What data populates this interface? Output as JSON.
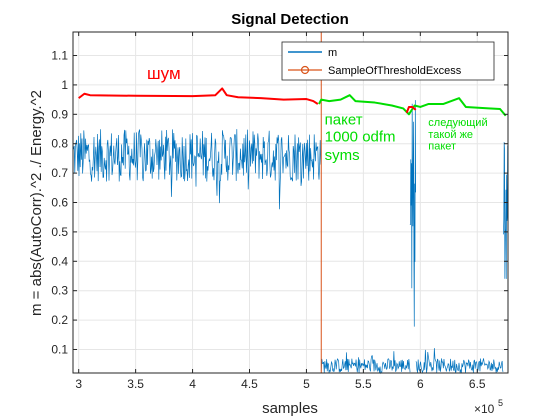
{
  "chart_data": {
    "type": "line",
    "title": "Signal Detection",
    "xlabel": "samples",
    "ylabel": "m = abs(AutoCorr).^2 ./ Energy.^2",
    "x_exponent_label": "×10",
    "x_exponent_power": "5",
    "xlim": [
      295000,
      677000
    ],
    "ylim": [
      0.02,
      1.18
    ],
    "x_ticks": [
      300000,
      350000,
      400000,
      450000,
      500000,
      550000,
      600000,
      650000
    ],
    "x_tick_labels": [
      "3",
      "3.5",
      "4",
      "4.5",
      "5",
      "5.5",
      "6",
      "6.5"
    ],
    "y_ticks": [
      0.1,
      0.2,
      0.3,
      0.4,
      0.5,
      0.6,
      0.7,
      0.8,
      0.9,
      1.0,
      1.1
    ],
    "y_tick_labels": [
      "0.1",
      "0.2",
      "0.3",
      "0.4",
      "0.5",
      "0.6",
      "0.7",
      "0.8",
      "0.9",
      "1",
      "1.1"
    ],
    "grid": true,
    "legend_position": "top-right",
    "series": [
      {
        "name": "m",
        "color": "#0072BD",
        "segments": [
          {
            "x_start": 295000,
            "x_end": 513000,
            "mean": 0.76,
            "spread": 0.09,
            "note_level": "noise"
          },
          {
            "x_start": 513000,
            "x_end": 591000,
            "mean": 0.045,
            "spread": 0.025,
            "note_level": "packet"
          },
          {
            "x_start": 591000,
            "x_end": 596000,
            "mean": 0.93,
            "spread": 0.04,
            "note_level": "spike"
          },
          {
            "x_start": 596000,
            "x_end": 673000,
            "mean": 0.045,
            "spread": 0.025,
            "note_level": "packet"
          },
          {
            "x_start": 673000,
            "x_end": 677000,
            "mean": 0.8,
            "spread": 0.08,
            "note_level": "spike"
          }
        ]
      },
      {
        "name": "SampleOfThresholdExcess",
        "color": "#D95319",
        "marker": "circle",
        "x": [
          513000,
          513000
        ],
        "y": [
          0.02,
          1.18
        ]
      }
    ],
    "annotation_curves": [
      {
        "color": "#FF0000",
        "points": [
          [
            300000,
            0.955
          ],
          [
            305000,
            0.97
          ],
          [
            310000,
            0.965
          ],
          [
            350000,
            0.963
          ],
          [
            400000,
            0.962
          ],
          [
            420000,
            0.965
          ],
          [
            426000,
            0.988
          ],
          [
            430000,
            0.965
          ],
          [
            440000,
            0.958
          ],
          [
            460000,
            0.955
          ],
          [
            480000,
            0.95
          ],
          [
            500000,
            0.952
          ],
          [
            506000,
            0.945
          ],
          [
            510000,
            0.935
          ]
        ]
      },
      {
        "color": "#00DD00",
        "points": [
          [
            511000,
            0.935
          ],
          [
            513000,
            0.95
          ],
          [
            520000,
            0.945
          ],
          [
            530000,
            0.95
          ],
          [
            538000,
            0.965
          ],
          [
            543000,
            0.945
          ],
          [
            560000,
            0.94
          ],
          [
            575000,
            0.93
          ],
          [
            585000,
            0.92
          ],
          [
            590000,
            0.9
          ],
          [
            595000,
            0.93
          ],
          [
            600000,
            0.925
          ],
          [
            607000,
            0.935
          ],
          [
            620000,
            0.935
          ],
          [
            634000,
            0.955
          ],
          [
            640000,
            0.925
          ],
          [
            660000,
            0.92
          ],
          [
            670000,
            0.918
          ],
          [
            675000,
            0.895
          ]
        ]
      },
      {
        "color": "#FF0000",
        "points": [
          [
            588000,
            0.905
          ],
          [
            590000,
            0.925
          ],
          [
            593000,
            0.925
          ],
          [
            596000,
            0.915
          ]
        ]
      }
    ],
    "annotations": [
      {
        "text": "шум",
        "color": "#FF0000",
        "x": 360000,
        "y": 1.02,
        "size": 17
      },
      {
        "text": "пакет",
        "color": "#00DD00",
        "x": 516000,
        "y": 0.865,
        "size": 15
      },
      {
        "text": "1000 odfm",
        "color": "#00DD00",
        "x": 516000,
        "y": 0.807,
        "size": 15
      },
      {
        "text": "syms",
        "color": "#00DD00",
        "x": 516000,
        "y": 0.745,
        "size": 15
      },
      {
        "text": "следующий",
        "color": "#00DD00",
        "x": 607000,
        "y": 0.86,
        "size": 11
      },
      {
        "text": "такой же",
        "color": "#00DD00",
        "x": 607000,
        "y": 0.82,
        "size": 11
      },
      {
        "text": "пакет",
        "color": "#00DD00",
        "x": 607000,
        "y": 0.78,
        "size": 11
      }
    ]
  }
}
